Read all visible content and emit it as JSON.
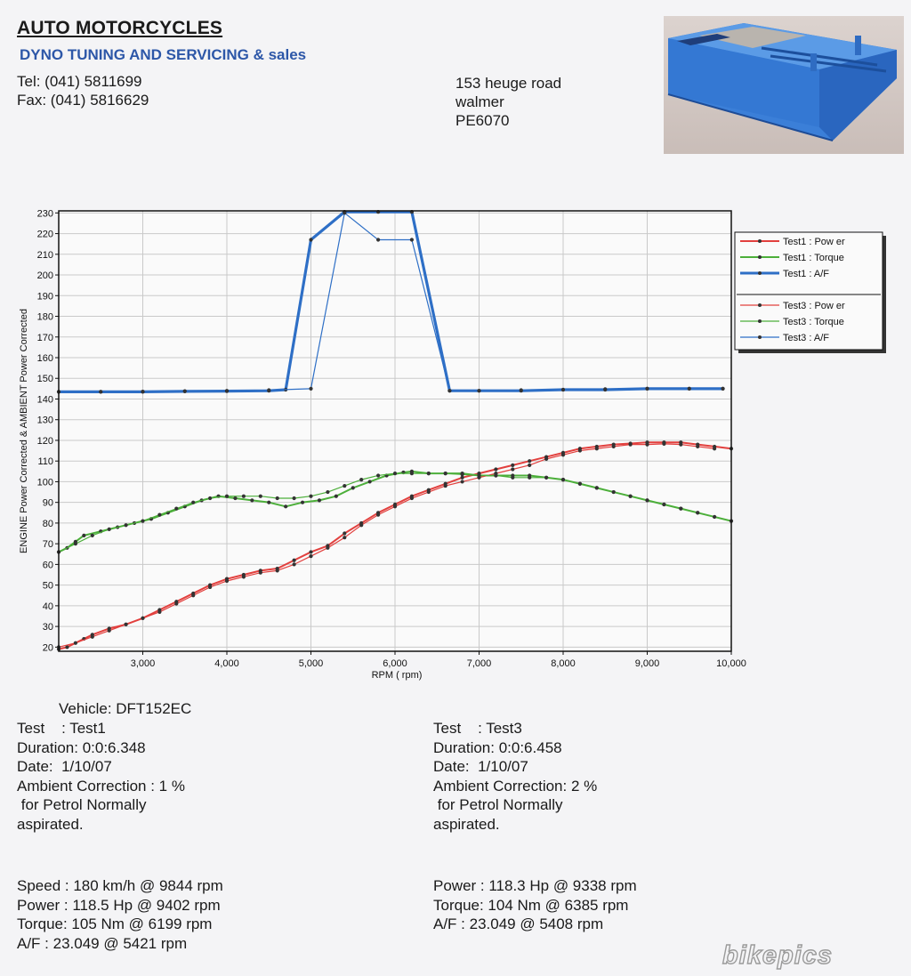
{
  "header": {
    "company": "AUTO MOTORCYCLES",
    "tagline": "DYNO TUNING AND SERVICING & sales",
    "tel": "Tel: (041) 5811699",
    "fax": "Fax: (041) 5816629",
    "address": [
      "153 heuge road",
      "walmer",
      "PE6070"
    ]
  },
  "watermark": "bikepics",
  "vehicle": "Vehicle: DFT152EC",
  "test1_info": {
    "test": "Test    : Test1",
    "duration": "Duration: 0:0:6.348",
    "date": "Date:  1/10/07",
    "ambient": "Ambient Correction : 1 %",
    "fuel": " for Petrol Normally",
    "aspiration": "aspirated."
  },
  "test3_info": {
    "test": "Test    : Test3",
    "duration": "Duration: 0:0:6.458",
    "date": "Date:  1/10/07",
    "ambient": "Ambient Correction: 2 %",
    "fuel": " for Petrol Normally",
    "aspiration": "aspirated."
  },
  "test1_results": {
    "speed": "Speed : 180 km/h @ 9844 rpm",
    "power": "Power : 118.5 Hp @ 9402 rpm",
    "torque": "Torque: 105 Nm @ 6199 rpm",
    "af": "A/F : 23.049 @ 5421 rpm"
  },
  "test3_results": {
    "power": "Power : 118.3 Hp @ 9338 rpm",
    "torque": "Torque: 104 Nm @ 6385 rpm",
    "af": "A/F : 23.049 @ 5408 rpm"
  },
  "chart_data": {
    "type": "line",
    "title": "",
    "xlabel": "RPM ( rpm)",
    "ylabel": "ENGINE Power Corrected & AMBIENT Power Corrected",
    "xlim": [
      2000,
      10000
    ],
    "ylim": [
      18,
      231
    ],
    "xticks": [
      3000,
      4000,
      5000,
      6000,
      7000,
      8000,
      9000,
      10000
    ],
    "xtick_labels": [
      "3,000",
      "4,000",
      "5,000",
      "6,000",
      "7,000",
      "8,000",
      "9,000",
      "10,000"
    ],
    "yticks": [
      20,
      30,
      40,
      50,
      60,
      70,
      80,
      90,
      100,
      110,
      120,
      130,
      140,
      150,
      160,
      170,
      180,
      190,
      200,
      210,
      220,
      230
    ],
    "grid": true,
    "legend_position": "right",
    "series": [
      {
        "name": "Test1 : Pow er",
        "color": "#e2403e",
        "width": 2,
        "x": [
          2000,
          2100,
          2300,
          2400,
          2600,
          2800,
          3000,
          3200,
          3400,
          3600,
          3800,
          4000,
          4200,
          4400,
          4600,
          4800,
          5000,
          5200,
          5400,
          5600,
          5800,
          6000,
          6200,
          6400,
          6600,
          6800,
          7000,
          7200,
          7400,
          7600,
          7800,
          8000,
          8200,
          8400,
          8600,
          8800,
          9000,
          9200,
          9400,
          9600,
          9800,
          10000
        ],
        "y": [
          19,
          20,
          24,
          26,
          29,
          31,
          34,
          38,
          42,
          46,
          50,
          53,
          55,
          57,
          58,
          62,
          66,
          69,
          75,
          80,
          85,
          89,
          93,
          96,
          99,
          102,
          104,
          106,
          108,
          110,
          112,
          114,
          116,
          117,
          118,
          118.5,
          119,
          119,
          119,
          118,
          117,
          116
        ]
      },
      {
        "name": "Test1 : Torque",
        "color": "#4caf3a",
        "width": 2,
        "x": [
          2000,
          2100,
          2200,
          2300,
          2500,
          2700,
          2900,
          3100,
          3300,
          3500,
          3700,
          3900,
          4100,
          4300,
          4500,
          4700,
          4900,
          5100,
          5300,
          5500,
          5700,
          5900,
          6100,
          6200,
          6400,
          6600,
          6800,
          7000,
          7200,
          7400,
          7600,
          7800,
          8000,
          8200,
          8400,
          8600,
          8800,
          9000,
          9200,
          9400,
          9600,
          9800,
          10000
        ],
        "y": [
          66,
          68,
          71,
          74,
          76,
          78,
          80,
          82,
          85,
          88,
          91,
          93,
          92,
          91,
          90,
          88,
          90,
          91,
          93,
          97,
          100,
          103,
          104.5,
          105,
          104,
          104,
          104,
          103,
          103,
          103,
          103,
          102,
          101,
          99,
          97,
          95,
          93,
          91,
          89,
          87,
          85,
          83,
          81
        ]
      },
      {
        "name": "Test1 : A/F",
        "color": "#2e6fc6",
        "width": 3.2,
        "x": [
          2000,
          2500,
          3000,
          3500,
          4000,
          4500,
          4700,
          5000,
          5400,
          5800,
          6200,
          6650,
          7000,
          7500,
          8000,
          8500,
          9000,
          9500,
          9900
        ],
        "y": [
          143.5,
          143.5,
          143.5,
          143.7,
          143.8,
          144,
          144.5,
          217,
          230.5,
          230.5,
          230.5,
          144,
          144,
          144,
          144.5,
          144.5,
          145,
          145,
          145
        ]
      },
      {
        "name": "Test3 : Pow er",
        "color": "#e2403e",
        "width": 1.2,
        "x": [
          2000,
          2200,
          2400,
          2600,
          2800,
          3000,
          3200,
          3400,
          3600,
          3800,
          4000,
          4200,
          4400,
          4600,
          4800,
          5000,
          5200,
          5400,
          5600,
          5800,
          6000,
          6200,
          6400,
          6600,
          6800,
          7000,
          7200,
          7400,
          7600,
          7800,
          8000,
          8200,
          8400,
          8600,
          8800,
          9000,
          9200,
          9400,
          9600,
          9800
        ],
        "y": [
          20,
          22,
          25,
          28,
          31,
          34,
          37,
          41,
          45,
          49,
          52,
          54,
          56,
          57,
          60,
          64,
          68,
          73,
          79,
          84,
          88,
          92,
          95,
          98,
          100,
          102,
          104,
          106,
          108,
          111,
          113,
          115,
          116,
          117,
          118,
          118,
          118.3,
          118,
          117,
          116
        ]
      },
      {
        "name": "Test3 : Torque",
        "color": "#4caf3a",
        "width": 1.2,
        "x": [
          2000,
          2200,
          2400,
          2600,
          2800,
          3000,
          3200,
          3400,
          3600,
          3800,
          4000,
          4200,
          4400,
          4600,
          4800,
          5000,
          5200,
          5400,
          5600,
          5800,
          6000,
          6200,
          6400,
          6600,
          6800,
          7000,
          7200,
          7400,
          7600,
          7800,
          8000,
          8200,
          8400,
          8600,
          8800,
          9000,
          9200,
          9400,
          9600,
          9800
        ],
        "y": [
          66,
          70,
          74,
          77,
          79,
          81,
          84,
          87,
          90,
          92,
          93,
          93,
          93,
          92,
          92,
          93,
          95,
          98,
          101,
          103,
          104,
          104,
          104,
          104,
          103.5,
          103,
          103,
          102,
          102,
          102,
          101,
          99,
          97,
          95,
          93,
          91,
          89,
          87,
          85,
          83
        ]
      },
      {
        "name": "Test3 : A/F",
        "color": "#2e6fc6",
        "width": 1.2,
        "x": [
          2000,
          2500,
          3000,
          3500,
          4000,
          4500,
          5000,
          5400,
          5800,
          6200,
          6650,
          7000,
          7500,
          8000,
          8500,
          9000,
          9500,
          9900
        ],
        "y": [
          143.5,
          143.5,
          143.6,
          143.8,
          144,
          144.3,
          145,
          230,
          217,
          217,
          144,
          144,
          144.3,
          144.5,
          144.8,
          145,
          145,
          145
        ]
      }
    ]
  }
}
